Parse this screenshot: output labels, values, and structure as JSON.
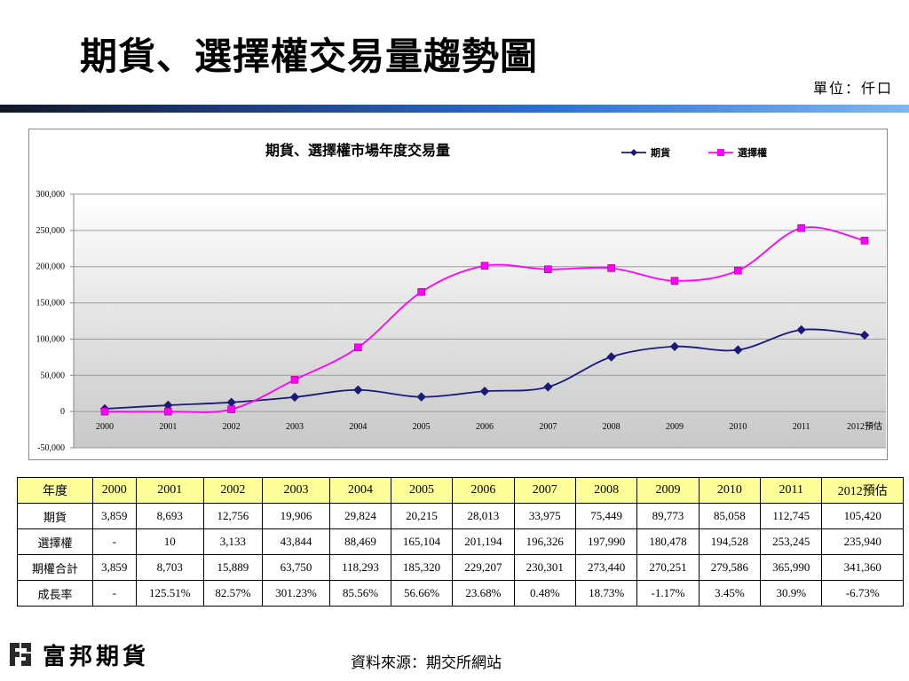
{
  "page": {
    "title": "期貨、選擇權交易量趨勢圖",
    "unit": "單位：仟口",
    "source": "資料來源：期交所網站",
    "logo_text": "富邦期貨"
  },
  "chart_data": {
    "type": "line",
    "title": "期貨、選擇權市場年度交易量",
    "categories": [
      "2000",
      "2001",
      "2002",
      "2003",
      "2004",
      "2005",
      "2006",
      "2007",
      "2008",
      "2009",
      "2010",
      "2011",
      "2012預估"
    ],
    "series": [
      {
        "name": "期貨",
        "color": "#1a1a7a",
        "marker": "diamond",
        "values": [
          3859,
          8693,
          12756,
          19906,
          29824,
          20215,
          28013,
          33975,
          75449,
          89773,
          85058,
          112745,
          105420
        ]
      },
      {
        "name": "選擇權",
        "color": "#ff00ff",
        "marker": "square",
        "values": [
          0,
          10,
          3133,
          43844,
          88469,
          165104,
          201194,
          196326,
          197990,
          180478,
          194528,
          253245,
          235940
        ]
      }
    ],
    "yticks": [
      -50000,
      0,
      50000,
      100000,
      150000,
      200000,
      250000,
      300000
    ],
    "ytick_labels": [
      "-50,000",
      "0",
      "50,000",
      "100,000",
      "150,000",
      "200,000",
      "250,000",
      "300,000"
    ],
    "ylim": [
      -50000,
      300000
    ],
    "legend_position": "top-right",
    "grid": true
  },
  "table": {
    "header": [
      "年度",
      "2000",
      "2001",
      "2002",
      "2003",
      "2004",
      "2005",
      "2006",
      "2007",
      "2008",
      "2009",
      "2010",
      "2011",
      "2012預估"
    ],
    "rows": [
      [
        "期貨",
        "3,859",
        "8,693",
        "12,756",
        "19,906",
        "29,824",
        "20,215",
        "28,013",
        "33,975",
        "75,449",
        "89,773",
        "85,058",
        "112,745",
        "105,420"
      ],
      [
        "選擇權",
        "-",
        "10",
        "3,133",
        "43,844",
        "88,469",
        "165,104",
        "201,194",
        "196,326",
        "197,990",
        "180,478",
        "194,528",
        "253,245",
        "235,940"
      ],
      [
        "期權合計",
        "3,859",
        "8,703",
        "15,889",
        "63,750",
        "118,293",
        "185,320",
        "229,207",
        "230,301",
        "273,440",
        "270,251",
        "279,586",
        "365,990",
        "341,360"
      ],
      [
        "成長率",
        "-",
        "125.51%",
        "82.57%",
        "301.23%",
        "85.56%",
        "56.66%",
        "23.68%",
        "0.48%",
        "18.73%",
        "-1.17%",
        "3.45%",
        "30.9%",
        "-6.73%"
      ]
    ]
  },
  "colors": {
    "accent": "#ffff99",
    "futures": "#1a1a7a",
    "options": "#ff00ff"
  }
}
